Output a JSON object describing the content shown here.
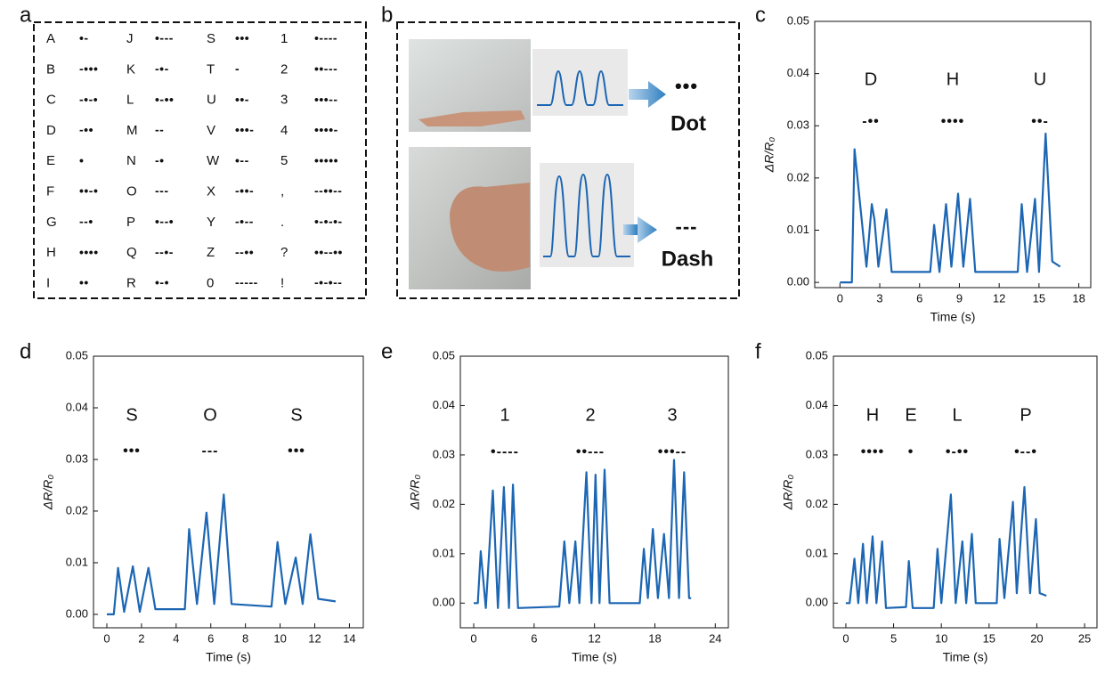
{
  "panel_labels": [
    "a",
    "b",
    "c",
    "d",
    "e",
    "f"
  ],
  "morse_table": {
    "rows": [
      [
        [
          "A",
          "•-"
        ],
        [
          "J",
          "•---"
        ],
        [
          "S",
          "•••"
        ],
        [
          "1",
          "•----"
        ]
      ],
      [
        [
          "B",
          "-•••"
        ],
        [
          "K",
          "-•-"
        ],
        [
          "T",
          "-"
        ],
        [
          "2",
          "••---"
        ]
      ],
      [
        [
          "C",
          "-•-•"
        ],
        [
          "L",
          "•-••"
        ],
        [
          "U",
          "••-"
        ],
        [
          "3",
          "•••--"
        ]
      ],
      [
        [
          "D",
          "-••"
        ],
        [
          "M",
          "--"
        ],
        [
          "V",
          "•••-"
        ],
        [
          "4",
          "••••-"
        ]
      ],
      [
        [
          "E",
          "•"
        ],
        [
          "N",
          "-•"
        ],
        [
          "W",
          "•--"
        ],
        [
          "5",
          "•••••"
        ]
      ],
      [
        [
          "F",
          "••-•"
        ],
        [
          "O",
          "---"
        ],
        [
          "X",
          "-••-"
        ],
        [
          ",",
          "--••--"
        ]
      ],
      [
        [
          "G",
          "--•"
        ],
        [
          "P",
          "•--•"
        ],
        [
          "Y",
          "-•--"
        ],
        [
          ".",
          "•-•-•-"
        ]
      ],
      [
        [
          "H",
          "••••"
        ],
        [
          "Q",
          "--•-"
        ],
        [
          "Z",
          "--••"
        ],
        [
          "?",
          "••--••"
        ]
      ],
      [
        [
          "I",
          "••"
        ],
        [
          "R",
          "•-•"
        ],
        [
          "0",
          "-----"
        ],
        [
          "!",
          "-•-•--"
        ]
      ]
    ]
  },
  "panel_b": {
    "dot_code": "•••",
    "dot_label": "Dot",
    "dash_code": "---",
    "dash_label": "Dash"
  },
  "chart_data": [
    {
      "type": "line",
      "xlabel": "Time (s)",
      "ylabel": "ΔR/R₀",
      "xlim": [
        -1.9,
        18.9
      ],
      "ylim": [
        -0.001,
        0.05
      ],
      "xticks": [
        0,
        3,
        6,
        9,
        12,
        15,
        18
      ],
      "yticks": [
        {
          "value": 0,
          "label": "0.00"
        },
        0.01,
        0.02,
        0.03,
        0.04,
        0.05
      ],
      "annotations": [
        {
          "label": "D",
          "code": "-••"
        },
        {
          "label": "H",
          "code": "••••"
        },
        {
          "label": "U",
          "code": "••-"
        }
      ],
      "x": [
        0,
        0.9,
        1.1,
        2.0,
        2.4,
        2.6,
        2.9,
        3.5,
        3.9,
        6.8,
        7.1,
        7.5,
        8.0,
        8.4,
        8.9,
        9.3,
        9.8,
        10.2,
        13.4,
        13.7,
        14.1,
        14.7,
        15.0,
        15.5,
        16.0,
        16.6
      ],
      "series": [
        {
          "color": "#1c66b3",
          "values": [
            0,
            0,
            0.0255,
            0.003,
            0.015,
            0.012,
            0.003,
            0.014,
            0.002,
            0.002,
            0.011,
            0.002,
            0.015,
            0.003,
            0.017,
            0.003,
            0.016,
            0.002,
            0.002,
            0.015,
            0.002,
            0.016,
            0.002,
            0.0285,
            0.004,
            0.003
          ]
        }
      ]
    },
    {
      "type": "line",
      "xlabel": "Time (s)",
      "ylabel": "ΔR/R₀",
      "xlim": [
        -0.77,
        14.8
      ],
      "ylim": [
        -0.0026,
        0.05
      ],
      "xticks": [
        0,
        2,
        4,
        6,
        8,
        10,
        12,
        14
      ],
      "yticks": [
        {
          "value": 0,
          "label": "0.00"
        },
        0.01,
        0.02,
        0.03,
        0.04,
        0.05
      ],
      "annotations": [
        {
          "label": "S",
          "code": "•••"
        },
        {
          "label": "O",
          "code": "---"
        },
        {
          "label": "S",
          "code": "•••"
        }
      ],
      "x": [
        0,
        0.4,
        0.65,
        1.0,
        1.5,
        1.9,
        2.4,
        2.8,
        4.5,
        4.75,
        5.2,
        5.75,
        6.2,
        6.75,
        7.2,
        9.5,
        9.85,
        10.3,
        10.9,
        11.3,
        11.75,
        12.2,
        13.2
      ],
      "series": [
        {
          "color": "#1c66b3",
          "values": [
            0,
            0,
            0.009,
            0.0005,
            0.0093,
            0.0005,
            0.009,
            0.001,
            0.001,
            0.0165,
            0.002,
            0.0197,
            0.002,
            0.0232,
            0.002,
            0.0015,
            0.014,
            0.002,
            0.011,
            0.002,
            0.0155,
            0.003,
            0.0025
          ]
        }
      ]
    },
    {
      "type": "line",
      "xlabel": "Time (s)",
      "ylabel": "ΔR/R₀",
      "xlim": [
        -1.33,
        25.3
      ],
      "ylim": [
        -0.005,
        0.05
      ],
      "xticks": [
        0,
        6,
        12,
        18,
        24
      ],
      "yticks": [
        {
          "value": 0,
          "label": "0.00"
        },
        0.01,
        0.02,
        0.03,
        0.04,
        0.05
      ],
      "annotations": [
        {
          "label": "1",
          "code": "•----"
        },
        {
          "label": "2",
          "code": "••---"
        },
        {
          "label": "3",
          "code": "•••--"
        }
      ],
      "x": [
        0,
        0.4,
        0.7,
        1.2,
        1.9,
        2.4,
        3.0,
        3.5,
        3.9,
        4.4,
        8.5,
        9.0,
        9.5,
        10.1,
        10.5,
        11.2,
        11.7,
        12.1,
        12.5,
        13.0,
        13.5,
        16.5,
        16.9,
        17.3,
        17.8,
        18.3,
        18.9,
        19.4,
        19.9,
        20.4,
        20.9,
        21.4,
        21.6
      ],
      "series": [
        {
          "color": "#1c66b3",
          "values": [
            0,
            0,
            0.0105,
            -0.001,
            0.0228,
            -0.001,
            0.0235,
            -0.001,
            0.024,
            -0.001,
            -0.0007,
            0.0125,
            0,
            0.0125,
            0,
            0.0265,
            0,
            0.026,
            0,
            0.027,
            0,
            0,
            0.011,
            0.001,
            0.015,
            0.001,
            0.014,
            0.001,
            0.029,
            0.001,
            0.0265,
            0.001,
            0.001
          ]
        }
      ]
    },
    {
      "type": "line",
      "xlabel": "Time (s)",
      "ylabel": "ΔR/R₀",
      "xlim": [
        -1.3,
        26.3
      ],
      "ylim": [
        -0.005,
        0.05
      ],
      "xticks": [
        0,
        5,
        10,
        15,
        20,
        25
      ],
      "yticks": [
        {
          "value": 0,
          "label": "0.00"
        },
        0.01,
        0.02,
        0.03,
        0.04,
        0.05
      ],
      "annotations": [
        {
          "label": "H",
          "code": "••••"
        },
        {
          "label": "E",
          "code": "•"
        },
        {
          "label": "L",
          "code": "•-••"
        },
        {
          "label": "P",
          "code": "•--•"
        }
      ],
      "x": [
        0,
        0.4,
        0.9,
        1.3,
        1.8,
        2.2,
        2.8,
        3.2,
        3.8,
        4.2,
        6.3,
        6.6,
        7.0,
        9.2,
        9.6,
        10.0,
        11.0,
        11.5,
        12.2,
        12.6,
        13.2,
        13.6,
        15.8,
        16.1,
        16.6,
        17.5,
        17.9,
        18.7,
        19.3,
        19.9,
        20.3,
        21.0
      ],
      "series": [
        {
          "color": "#1c66b3",
          "values": [
            0,
            0,
            0.009,
            0,
            0.012,
            0,
            0.0135,
            0,
            0.0125,
            -0.001,
            -0.0008,
            0.0085,
            -0.001,
            -0.001,
            0.011,
            0,
            0.022,
            0,
            0.0125,
            0,
            0.014,
            0,
            0,
            0.013,
            0.001,
            0.0205,
            0.002,
            0.0235,
            0.002,
            0.017,
            0.002,
            0.0015
          ]
        }
      ]
    }
  ]
}
